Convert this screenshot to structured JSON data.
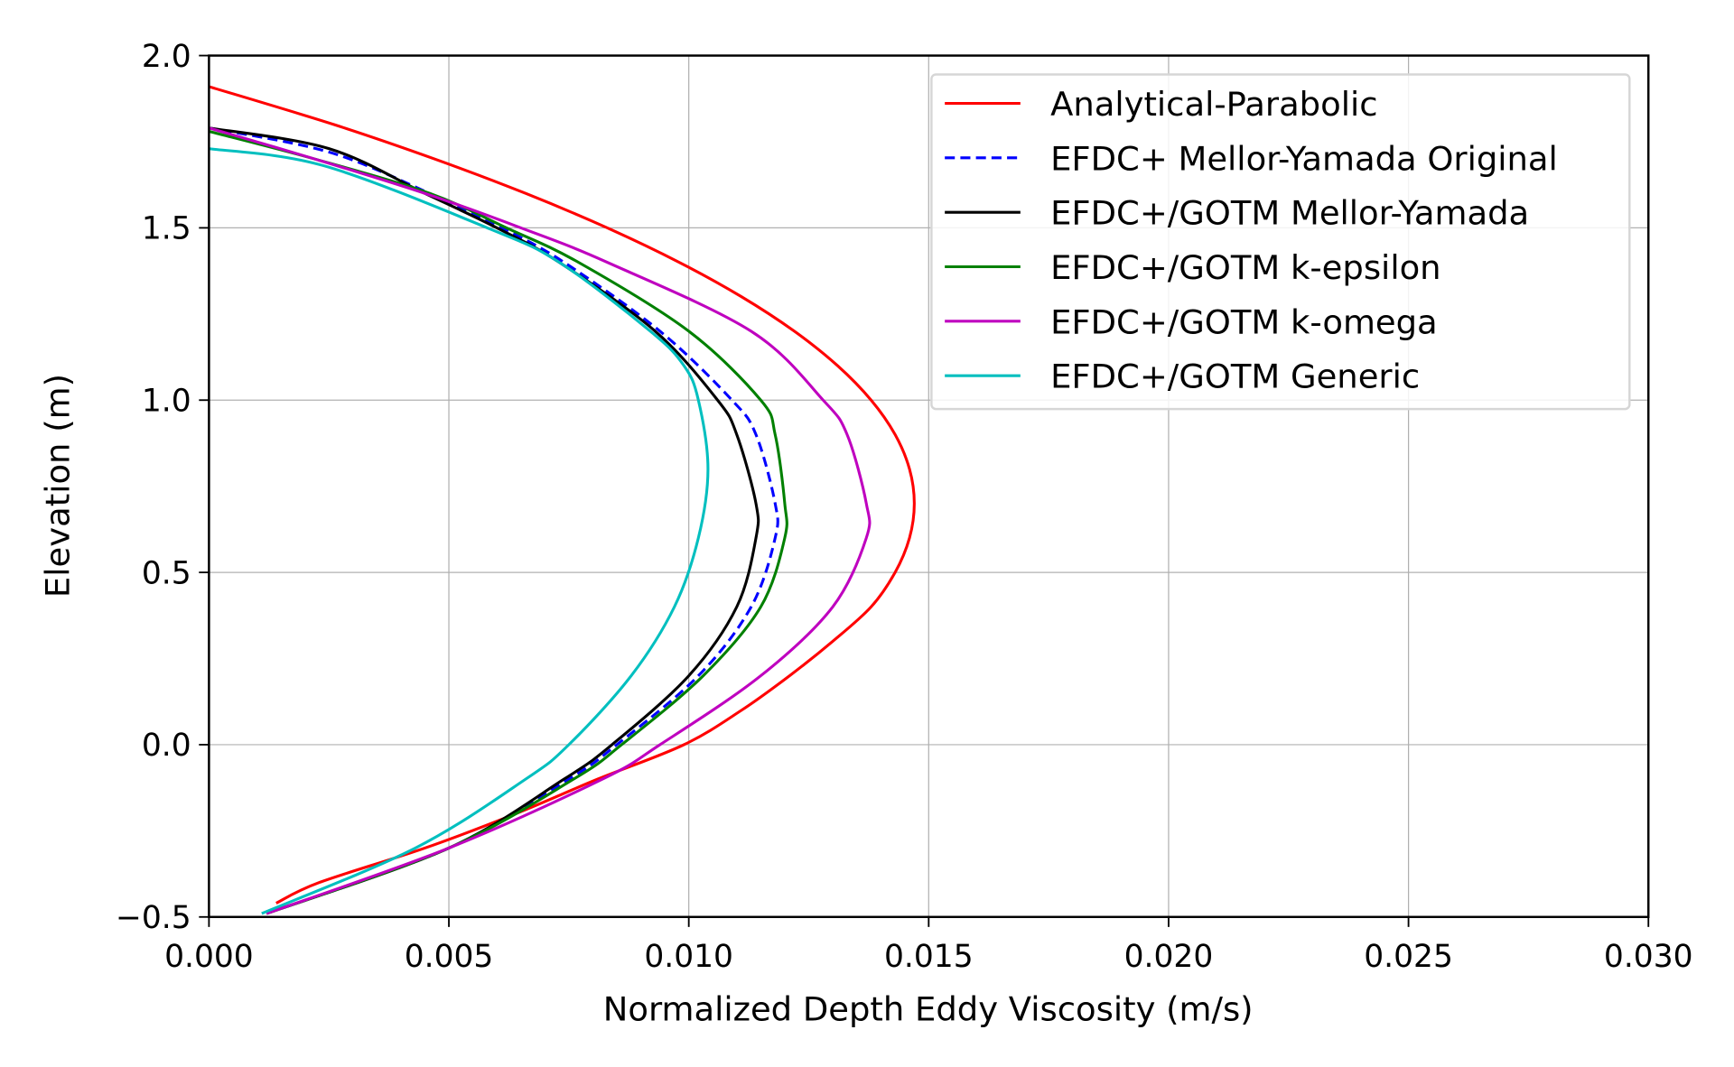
{
  "chart_data": {
    "type": "line",
    "title": "",
    "xlabel": "Normalized Depth Eddy Viscosity (m/s)",
    "ylabel": "Elevation (m)",
    "xlim": [
      0,
      0.03
    ],
    "ylim": [
      -0.5,
      2.0
    ],
    "xticks": [
      "0.000",
      "0.005",
      "0.010",
      "0.015",
      "0.020",
      "0.025",
      "0.030"
    ],
    "yticks": [
      "−0.5",
      "0.0",
      "0.5",
      "1.0",
      "1.5",
      "2.0"
    ],
    "grid": true,
    "legend_position": "top-right",
    "series": [
      {
        "name": "Analytical-Parabolic",
        "color": "#ff0000",
        "dash": false,
        "points": [
          [
            0.0014,
            -0.46
          ],
          [
            0.0023,
            -0.4
          ],
          [
            0.0045,
            -0.3
          ],
          [
            0.0064,
            -0.2
          ],
          [
            0.0081,
            -0.1
          ],
          [
            0.0099,
            0
          ],
          [
            0.0111,
            0.1
          ],
          [
            0.0121,
            0.2
          ],
          [
            0.013,
            0.3
          ],
          [
            0.0138,
            0.4
          ],
          [
            0.0143,
            0.5
          ],
          [
            0.0146,
            0.6
          ],
          [
            0.0147,
            0.7
          ],
          [
            0.0146,
            0.8
          ],
          [
            0.0143,
            0.9
          ],
          [
            0.0138,
            1.0
          ],
          [
            0.0131,
            1.1
          ],
          [
            0.0122,
            1.2
          ],
          [
            0.0111,
            1.3
          ],
          [
            0.0098,
            1.4
          ],
          [
            0.0083,
            1.5
          ],
          [
            0.0066,
            1.6
          ],
          [
            0.0047,
            1.7
          ],
          [
            0.0026,
            1.8
          ],
          [
            0.0,
            1.91
          ]
        ]
      },
      {
        "name": "EFDC+ Mellor-Yamada Original",
        "color": "#0000ff",
        "dash": true,
        "points": [
          [
            0.0012,
            -0.49
          ],
          [
            0.005,
            -0.3
          ],
          [
            0.0075,
            -0.1
          ],
          [
            0.0085,
            0
          ],
          [
            0.0102,
            0.2
          ],
          [
            0.0113,
            0.4
          ],
          [
            0.0118,
            0.6
          ],
          [
            0.0118,
            0.7
          ],
          [
            0.0114,
            0.9
          ],
          [
            0.0109,
            1.0
          ],
          [
            0.0094,
            1.2
          ],
          [
            0.0074,
            1.4
          ],
          [
            0.0061,
            1.5
          ],
          [
            0.0046,
            1.6
          ],
          [
            0.0025,
            1.72
          ],
          [
            0.0,
            1.79
          ]
        ]
      },
      {
        "name": "EFDC+/GOTM Mellor-Yamada",
        "color": "#000000",
        "dash": false,
        "points": [
          [
            0.0012,
            -0.49
          ],
          [
            0.005,
            -0.3
          ],
          [
            0.0074,
            -0.1
          ],
          [
            0.0084,
            0
          ],
          [
            0.01,
            0.2
          ],
          [
            0.011,
            0.4
          ],
          [
            0.0114,
            0.6
          ],
          [
            0.0114,
            0.7
          ],
          [
            0.011,
            0.9
          ],
          [
            0.0106,
            1.0
          ],
          [
            0.0093,
            1.2
          ],
          [
            0.0073,
            1.4
          ],
          [
            0.006,
            1.5
          ],
          [
            0.0045,
            1.6
          ],
          [
            0.0025,
            1.73
          ],
          [
            0.0,
            1.79
          ]
        ]
      },
      {
        "name": "EFDC+/GOTM k-epsilon",
        "color": "#008000",
        "dash": false,
        "points": [
          [
            0.0012,
            -0.49
          ],
          [
            0.005,
            -0.3
          ],
          [
            0.0076,
            -0.1
          ],
          [
            0.0086,
            0
          ],
          [
            0.0103,
            0.2
          ],
          [
            0.0115,
            0.4
          ],
          [
            0.012,
            0.6
          ],
          [
            0.012,
            0.7
          ],
          [
            0.0118,
            0.9
          ],
          [
            0.0115,
            1.0
          ],
          [
            0.01,
            1.2
          ],
          [
            0.0077,
            1.4
          ],
          [
            0.0062,
            1.5
          ],
          [
            0.0046,
            1.6
          ],
          [
            0.0022,
            1.7
          ],
          [
            0.0,
            1.78
          ]
        ]
      },
      {
        "name": "EFDC+/GOTM k-omega",
        "color": "#bf00bf",
        "dash": false,
        "points": [
          [
            0.0012,
            -0.49
          ],
          [
            0.005,
            -0.3
          ],
          [
            0.0082,
            -0.1
          ],
          [
            0.0094,
            0
          ],
          [
            0.0115,
            0.2
          ],
          [
            0.013,
            0.4
          ],
          [
            0.0137,
            0.6
          ],
          [
            0.0137,
            0.7
          ],
          [
            0.0133,
            0.9
          ],
          [
            0.0128,
            1.0
          ],
          [
            0.0113,
            1.2
          ],
          [
            0.0083,
            1.4
          ],
          [
            0.0065,
            1.5
          ],
          [
            0.0045,
            1.6
          ],
          [
            0.0022,
            1.7
          ],
          [
            0.0,
            1.79
          ]
        ]
      },
      {
        "name": "EFDC+/GOTM Generic",
        "color": "#00bfbf",
        "dash": false,
        "points": [
          [
            0.0011,
            -0.49
          ],
          [
            0.0043,
            -0.3
          ],
          [
            0.0066,
            -0.1
          ],
          [
            0.0075,
            0
          ],
          [
            0.0088,
            0.2
          ],
          [
            0.0097,
            0.4
          ],
          [
            0.0102,
            0.6
          ],
          [
            0.0104,
            0.8
          ],
          [
            0.0102,
            1.0
          ],
          [
            0.0099,
            1.1
          ],
          [
            0.0092,
            1.2
          ],
          [
            0.0073,
            1.4
          ],
          [
            0.0058,
            1.5
          ],
          [
            0.0024,
            1.68
          ],
          [
            0.0,
            1.73
          ]
        ]
      }
    ]
  }
}
